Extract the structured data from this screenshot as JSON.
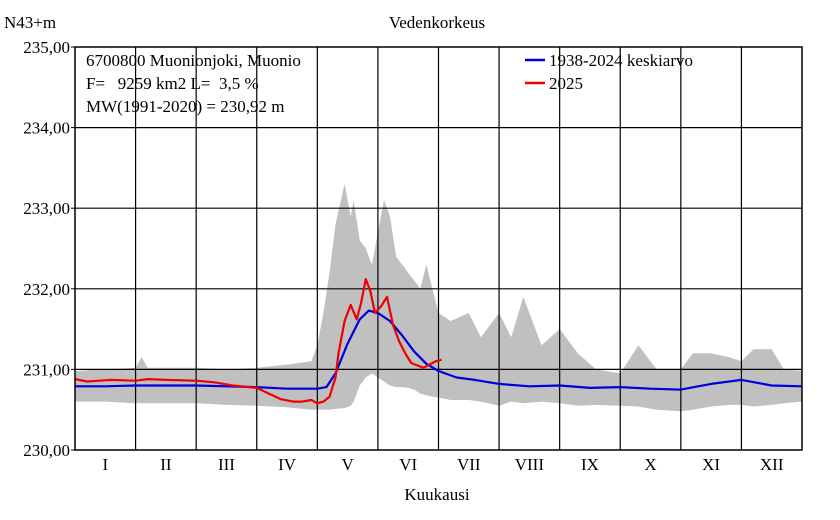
{
  "chart_data": {
    "type": "line",
    "title": "Vedenkorkeus",
    "ylabel": "N43+m",
    "xlabel": "Kuukausi",
    "ylim": [
      230.0,
      235.0
    ],
    "yticks": [
      230.0,
      231.0,
      232.0,
      233.0,
      234.0,
      235.0
    ],
    "ytick_labels": [
      "230,00",
      "231,00",
      "232,00",
      "233,00",
      "234,00",
      "235,00"
    ],
    "xlim": [
      0,
      12
    ],
    "month_labels": [
      "I",
      "II",
      "III",
      "IV",
      "V",
      "VI",
      "VII",
      "VIII",
      "IX",
      "X",
      "XI",
      "XII"
    ],
    "grid": true,
    "info_lines": [
      "6700800 Muonionjoki, Muonio",
      "F=   9259 km2 L=  3,5 %",
      "MW(1991-2020) = 230,92 m"
    ],
    "legend_position": "top-right",
    "series": [
      {
        "name": "1938-2024 keskiarvo",
        "color": "#0000dd",
        "x": [
          0,
          0.5,
          1,
          2,
          3,
          3.5,
          4,
          4.15,
          4.3,
          4.5,
          4.7,
          4.85,
          5.0,
          5.2,
          5.4,
          5.6,
          5.8,
          6.0,
          6.3,
          6.6,
          7.0,
          7.5,
          8.0,
          8.5,
          9.0,
          9.5,
          10.0,
          10.5,
          11.0,
          11.5,
          12.0
        ],
        "values": [
          230.79,
          230.79,
          230.8,
          230.8,
          230.78,
          230.76,
          230.76,
          230.78,
          230.95,
          231.32,
          231.62,
          231.73,
          231.7,
          231.6,
          231.42,
          231.22,
          231.07,
          230.98,
          230.9,
          230.87,
          230.82,
          230.79,
          230.8,
          230.77,
          230.78,
          230.76,
          230.75,
          230.82,
          230.87,
          230.8,
          230.79
        ]
      },
      {
        "name": "2025",
        "color": "#ee0000",
        "x": [
          0,
          0.2,
          0.4,
          0.6,
          1.0,
          1.2,
          1.5,
          2.0,
          2.3,
          2.6,
          3.0,
          3.2,
          3.4,
          3.6,
          3.75,
          3.9,
          4.0,
          4.1,
          4.2,
          4.3,
          4.35,
          4.45,
          4.55,
          4.65,
          4.72,
          4.8,
          4.88,
          4.95,
          5.05,
          5.15,
          5.25,
          5.35,
          5.45,
          5.55,
          5.65,
          5.75,
          5.85,
          5.95,
          6.05
        ],
        "values": [
          230.88,
          230.85,
          230.86,
          230.87,
          230.86,
          230.88,
          230.87,
          230.86,
          230.84,
          230.8,
          230.77,
          230.7,
          230.63,
          230.6,
          230.6,
          230.62,
          230.58,
          230.6,
          230.66,
          230.9,
          231.2,
          231.6,
          231.8,
          231.62,
          231.82,
          232.12,
          231.96,
          231.7,
          231.78,
          231.9,
          231.55,
          231.35,
          231.2,
          231.08,
          231.05,
          231.02,
          231.06,
          231.1,
          231.12
        ]
      }
    ],
    "range_band": {
      "color": "#c0c0c0",
      "x": [
        0,
        0.5,
        1.0,
        1.1,
        1.2,
        2.0,
        2.5,
        3.0,
        3.5,
        3.9,
        4.0,
        4.1,
        4.2,
        4.3,
        4.45,
        4.55,
        4.6,
        4.7,
        4.8,
        4.9,
        5.0,
        5.1,
        5.2,
        5.3,
        5.4,
        5.5,
        5.6,
        5.7,
        5.8,
        5.9,
        6.0,
        6.2,
        6.5,
        6.7,
        7.0,
        7.2,
        7.4,
        7.7,
        8.0,
        8.3,
        8.6,
        9.0,
        9.3,
        9.6,
        10.0,
        10.2,
        10.5,
        10.8,
        11.0,
        11.2,
        11.5,
        11.7,
        12.0
      ],
      "upper": [
        230.98,
        231.0,
        231.02,
        231.15,
        231.02,
        231.02,
        231.0,
        231.02,
        231.06,
        231.1,
        231.3,
        231.7,
        232.2,
        232.8,
        233.3,
        232.9,
        233.1,
        232.6,
        232.5,
        232.3,
        232.7,
        233.1,
        232.9,
        232.4,
        232.3,
        232.2,
        232.1,
        232.0,
        232.3,
        232.0,
        231.7,
        231.6,
        231.7,
        231.4,
        231.7,
        231.4,
        231.9,
        231.3,
        231.5,
        231.2,
        231.0,
        230.95,
        231.3,
        231.0,
        231.0,
        231.2,
        231.2,
        231.15,
        231.1,
        231.25,
        231.25,
        231.0,
        230.98
      ],
      "lower": [
        230.6,
        230.6,
        230.58,
        230.58,
        230.58,
        230.58,
        230.56,
        230.55,
        230.53,
        230.5,
        230.5,
        230.5,
        230.5,
        230.51,
        230.52,
        230.55,
        230.6,
        230.8,
        230.9,
        230.95,
        230.9,
        230.85,
        230.8,
        230.78,
        230.78,
        230.77,
        230.75,
        230.7,
        230.68,
        230.66,
        230.65,
        230.62,
        230.62,
        230.6,
        230.55,
        230.6,
        230.58,
        230.6,
        230.58,
        230.55,
        230.56,
        230.55,
        230.54,
        230.5,
        230.48,
        230.5,
        230.54,
        230.56,
        230.56,
        230.54,
        230.56,
        230.58,
        230.6
      ]
    }
  }
}
